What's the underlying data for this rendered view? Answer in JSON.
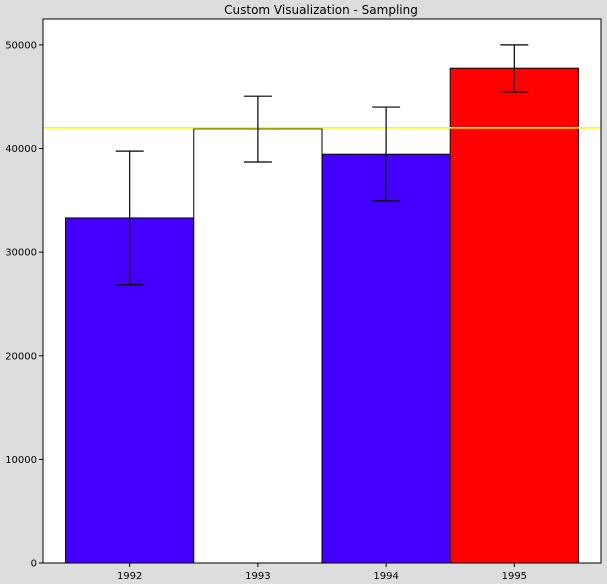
{
  "chart_data": {
    "type": "bar",
    "title": "Custom Visualization - Sampling",
    "xlabel": "",
    "ylabel": "",
    "categories": [
      "1992",
      "1993",
      "1994",
      "1995"
    ],
    "values": [
      33300,
      41900,
      39450,
      47750
    ],
    "error_low": [
      26850,
      38700,
      34950,
      45450
    ],
    "error_high": [
      39750,
      45050,
      44000,
      50000
    ],
    "bar_colors": [
      "#4400ff",
      "#ffffff",
      "#4400ff",
      "#ff0000"
    ],
    "reference_line": {
      "value": 42000,
      "color": "#ffff00"
    },
    "ylim": [
      0,
      52500
    ],
    "yticks": [
      0,
      10000,
      20000,
      30000,
      40000,
      50000
    ],
    "ytick_labels": [
      "0",
      "10000",
      "20000",
      "30000",
      "40000",
      "50000"
    ],
    "grid": false,
    "legend": "none"
  },
  "colors": {
    "figure_background": "#dddddd",
    "axes_background": "#ffffff",
    "edge": "#000000"
  }
}
